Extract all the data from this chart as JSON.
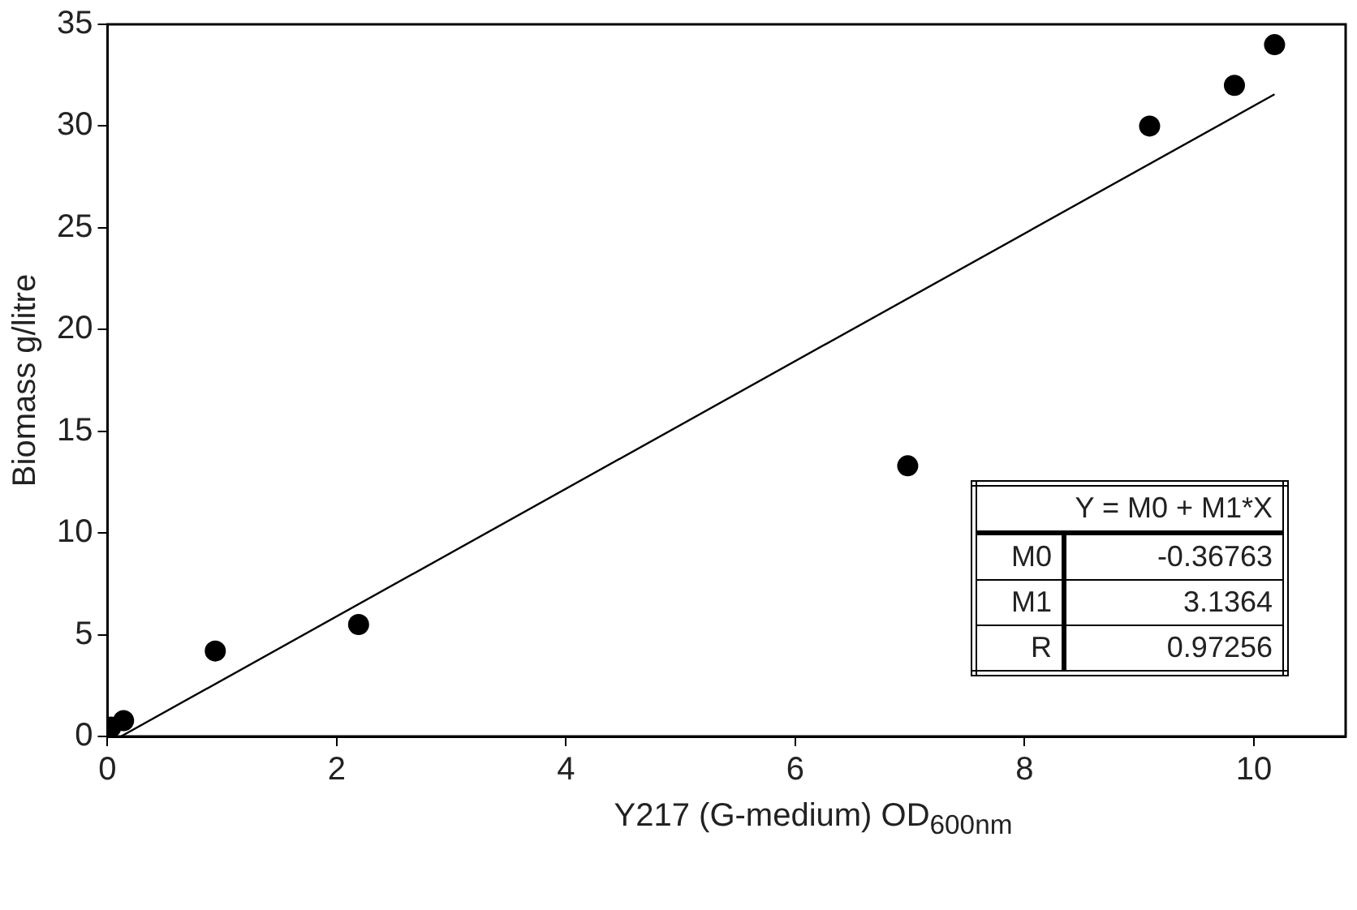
{
  "chart_data": {
    "type": "scatter",
    "xlabel": "Y217 (G-medium) OD$_{600nm}$",
    "ylabel": "Biomass g/litre",
    "xlim": [
      0,
      10.8
    ],
    "xticks": [
      0,
      2,
      4,
      6,
      8,
      10
    ],
    "ylim": [
      0,
      35
    ],
    "yticks": [
      0,
      5,
      10,
      15,
      20,
      25,
      30,
      35
    ],
    "grid": false,
    "legend": false,
    "marker": "circle",
    "series": [
      {
        "color": "#000000",
        "x": [
          0.03,
          0.14,
          0.94,
          2.19,
          6.98,
          9.09,
          9.83,
          10.18
        ],
        "values": [
          0.46,
          0.78,
          4.2,
          5.5,
          13.3,
          30.0,
          32.0,
          34.0
        ]
      },
      {
        "type": "line",
        "marker": "none",
        "color": "#000000",
        "x": [
          0.12,
          10.18
        ],
        "values": [
          0.01,
          31.56
        ]
      }
    ],
    "annotations": [
      "Y = M0 + M1*X",
      "M0",
      "-0.36763",
      "M1",
      "3.1364",
      "R",
      "0.97256"
    ]
  }
}
